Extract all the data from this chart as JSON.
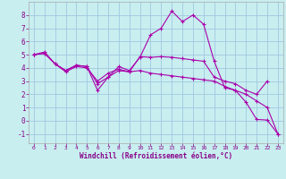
{
  "bg_color": "#c8eef0",
  "grid_color": "#a0c8e0",
  "line_color": "#aa00aa",
  "xlabel": "Windchill (Refroidissement éolien,°C)",
  "xlabel_color": "#880088",
  "tick_color": "#880088",
  "xlim": [
    -0.5,
    23.5
  ],
  "ylim": [
    -1.7,
    9.0
  ],
  "yticks": [
    -1,
    0,
    1,
    2,
    3,
    4,
    5,
    6,
    7,
    8
  ],
  "xticks": [
    0,
    1,
    2,
    3,
    4,
    5,
    6,
    7,
    8,
    9,
    10,
    11,
    12,
    13,
    14,
    15,
    16,
    17,
    18,
    19,
    20,
    21,
    22,
    23
  ],
  "line1_x": [
    0,
    1,
    2,
    3,
    4,
    5,
    6,
    7,
    8,
    9,
    10,
    11,
    12,
    13,
    14,
    15,
    16,
    17,
    18,
    19,
    20,
    21,
    22,
    23
  ],
  "line1_y": [
    5.0,
    5.2,
    4.3,
    3.8,
    4.2,
    4.1,
    2.3,
    3.3,
    4.1,
    3.8,
    4.8,
    6.5,
    7.0,
    8.3,
    7.5,
    8.0,
    7.3,
    4.5,
    2.5,
    2.3,
    1.4,
    0.1,
    0.05,
    -1.0
  ],
  "line2_x": [
    0,
    1,
    2,
    3,
    4,
    5,
    6,
    7,
    8,
    9,
    10,
    11,
    12,
    13,
    14,
    15,
    16,
    17,
    18,
    19,
    20,
    21,
    22
  ],
  "line2_y": [
    5.0,
    5.1,
    4.3,
    3.7,
    4.1,
    4.0,
    3.0,
    3.6,
    3.9,
    3.7,
    4.85,
    4.8,
    4.85,
    4.8,
    4.7,
    4.6,
    4.5,
    3.3,
    3.0,
    2.8,
    2.3,
    2.0,
    3.0
  ],
  "line3_x": [
    0,
    1,
    2,
    3,
    4,
    5,
    6,
    7,
    8,
    9,
    10,
    11,
    12,
    13,
    14,
    15,
    16,
    17,
    18,
    19,
    20,
    21,
    22,
    23
  ],
  "line3_y": [
    5.0,
    5.1,
    4.3,
    3.8,
    4.2,
    4.1,
    2.8,
    3.3,
    3.8,
    3.7,
    3.8,
    3.6,
    3.5,
    3.4,
    3.3,
    3.2,
    3.1,
    3.0,
    2.6,
    2.3,
    2.0,
    1.5,
    1.0,
    -1.0
  ]
}
